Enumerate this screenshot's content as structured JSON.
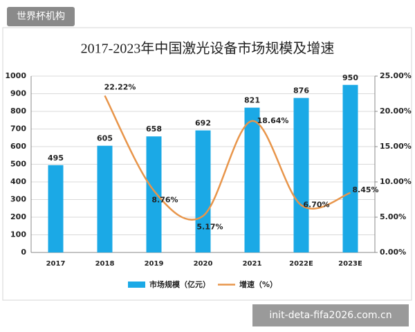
{
  "watermark_top": "世界杯机构",
  "watermark_bottom": "init-deta-fifa2026.com.cn",
  "chart_data": {
    "type": "combo",
    "title": "2017-2023年中国激光设备市场规模及增速",
    "categories": [
      "2017",
      "2018",
      "2019",
      "2020",
      "2021",
      "2022E",
      "2023E"
    ],
    "series": [
      {
        "name": "市场规模（亿元）",
        "type": "bar",
        "color": "#1ba9e6",
        "values": [
          495,
          605,
          658,
          692,
          821,
          876,
          950
        ]
      },
      {
        "name": "增速（%）",
        "type": "line",
        "axis": "y2",
        "color": "#e8954a",
        "values": [
          null,
          22.22,
          8.76,
          5.17,
          18.64,
          6.7,
          8.45
        ],
        "value_labels": [
          null,
          "22.22%",
          "8.76%",
          "5.17%",
          "18.64%",
          "6.70%",
          "8.45%"
        ]
      }
    ],
    "ylim": [
      0,
      1000
    ],
    "yticks": [
      0,
      100,
      200,
      300,
      400,
      500,
      600,
      700,
      800,
      900,
      1000
    ],
    "y2lim": [
      0,
      25
    ],
    "y2ticks": [
      {
        "value": 0,
        "label": "0.00%"
      },
      {
        "value": 5,
        "label": "5.00%"
      },
      {
        "value": 10,
        "label": "10.00%"
      },
      {
        "value": 15,
        "label": "15.00%"
      },
      {
        "value": 20,
        "label": "20.00%"
      },
      {
        "value": 25,
        "label": "25.00%"
      }
    ],
    "grid": true,
    "legend": "bottom"
  }
}
